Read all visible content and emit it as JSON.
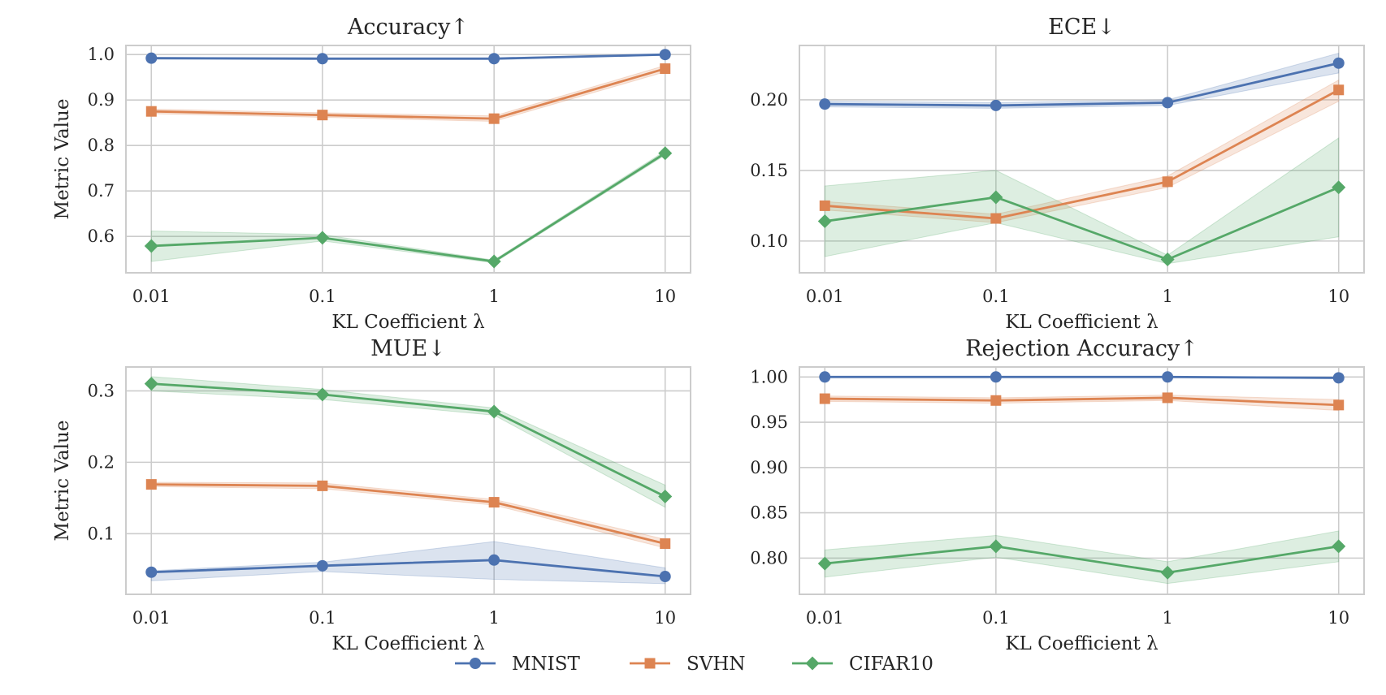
{
  "chart_data": [
    {
      "type": "line",
      "title": "Accuracy↑",
      "xlabel": "KL Coefficient λ",
      "ylabel": "Metric Value",
      "categories": [
        "0.01",
        "0.1",
        "1",
        "10"
      ],
      "ylim": [
        0.52,
        1.02
      ],
      "yticks": [
        0.6,
        0.7,
        0.8,
        0.9,
        1.0
      ],
      "ytick_labels": [
        "0.6",
        "0.7",
        "0.8",
        "0.9",
        "1.0"
      ],
      "grid": true,
      "series": [
        {
          "name": "MNIST",
          "values": [
            0.992,
            0.991,
            0.991,
            1.0
          ],
          "lower": [
            0.99,
            0.989,
            0.989,
            0.998
          ],
          "upper": [
            0.994,
            0.993,
            0.993,
            1.0
          ]
        },
        {
          "name": "SVHN",
          "values": [
            0.875,
            0.867,
            0.859,
            0.969
          ],
          "lower": [
            0.87,
            0.862,
            0.853,
            0.962
          ],
          "upper": [
            0.88,
            0.872,
            0.865,
            0.976
          ]
        },
        {
          "name": "CIFAR10",
          "values": [
            0.579,
            0.597,
            0.545,
            0.783
          ],
          "lower": [
            0.545,
            0.59,
            0.542,
            0.779
          ],
          "upper": [
            0.612,
            0.604,
            0.548,
            0.788
          ]
        }
      ]
    },
    {
      "type": "line",
      "title": "ECE↓",
      "xlabel": "KL Coefficient λ",
      "ylabel": "",
      "categories": [
        "0.01",
        "0.1",
        "1",
        "10"
      ],
      "ylim": [
        0.0775,
        0.2385
      ],
      "yticks": [
        0.1,
        0.15,
        0.2
      ],
      "ytick_labels": [
        "0.10",
        "0.15",
        "0.20"
      ],
      "grid": true,
      "series": [
        {
          "name": "MNIST",
          "values": [
            0.197,
            0.196,
            0.198,
            0.226
          ],
          "lower": [
            0.195,
            0.194,
            0.196,
            0.219
          ],
          "upper": [
            0.199,
            0.198,
            0.2,
            0.233
          ]
        },
        {
          "name": "SVHN",
          "values": [
            0.125,
            0.116,
            0.142,
            0.207
          ],
          "lower": [
            0.122,
            0.113,
            0.138,
            0.199
          ],
          "upper": [
            0.128,
            0.119,
            0.146,
            0.214
          ]
        },
        {
          "name": "CIFAR10",
          "values": [
            0.114,
            0.131,
            0.087,
            0.138
          ],
          "lower": [
            0.089,
            0.113,
            0.084,
            0.103
          ],
          "upper": [
            0.139,
            0.15,
            0.09,
            0.173
          ]
        }
      ]
    },
    {
      "type": "line",
      "title": "MUE↓",
      "xlabel": "KL Coefficient λ",
      "ylabel": "Metric Value",
      "categories": [
        "0.01",
        "0.1",
        "1",
        "10"
      ],
      "ylim": [
        0.015,
        0.3335
      ],
      "yticks": [
        0.1,
        0.2,
        0.3
      ],
      "ytick_labels": [
        "0.1",
        "0.2",
        "0.3"
      ],
      "grid": true,
      "series": [
        {
          "name": "MNIST",
          "values": [
            0.046,
            0.055,
            0.063,
            0.04
          ],
          "lower": [
            0.034,
            0.047,
            0.036,
            0.03
          ],
          "upper": [
            0.048,
            0.06,
            0.089,
            0.052
          ]
        },
        {
          "name": "SVHN",
          "values": [
            0.169,
            0.167,
            0.144,
            0.086
          ],
          "lower": [
            0.166,
            0.163,
            0.14,
            0.08
          ],
          "upper": [
            0.172,
            0.171,
            0.148,
            0.092
          ]
        },
        {
          "name": "CIFAR10",
          "values": [
            0.31,
            0.295,
            0.271,
            0.152
          ],
          "lower": [
            0.3,
            0.288,
            0.266,
            0.137
          ],
          "upper": [
            0.32,
            0.302,
            0.276,
            0.168
          ]
        }
      ]
    },
    {
      "type": "line",
      "title": "Rejection Accuracy↑",
      "xlabel": "KL Coefficient λ",
      "ylabel": "",
      "categories": [
        "0.01",
        "0.1",
        "1",
        "10"
      ],
      "ylim": [
        0.76,
        1.011
      ],
      "yticks": [
        0.8,
        0.85,
        0.9,
        0.95,
        1.0
      ],
      "ytick_labels": [
        "0.80",
        "0.85",
        "0.90",
        "0.95",
        "1.00"
      ],
      "grid": true,
      "series": [
        {
          "name": "MNIST",
          "values": [
            1.0,
            1.0,
            1.0,
            0.999
          ],
          "lower": [
            0.999,
            0.999,
            0.999,
            0.998
          ],
          "upper": [
            1.0,
            1.0,
            1.0,
            1.0
          ]
        },
        {
          "name": "SVHN",
          "values": [
            0.976,
            0.974,
            0.977,
            0.969
          ],
          "lower": [
            0.973,
            0.971,
            0.974,
            0.963
          ],
          "upper": [
            0.979,
            0.977,
            0.98,
            0.975
          ]
        },
        {
          "name": "CIFAR10",
          "values": [
            0.794,
            0.813,
            0.784,
            0.813
          ],
          "lower": [
            0.779,
            0.801,
            0.772,
            0.796
          ],
          "upper": [
            0.809,
            0.825,
            0.796,
            0.83
          ]
        }
      ]
    }
  ],
  "legend": {
    "position": "bottom-center",
    "items": [
      {
        "name": "MNIST",
        "color": "#4c72b0",
        "marker": "circle"
      },
      {
        "name": "SVHN",
        "color": "#dd8452",
        "marker": "square"
      },
      {
        "name": "CIFAR10",
        "color": "#55a868",
        "marker": "diamond"
      }
    ]
  },
  "colors": {
    "MNIST": "#4c72b0",
    "SVHN": "#dd8452",
    "CIFAR10": "#55a868",
    "grid": "#cccccc",
    "spine": "#cccccc"
  },
  "markers": {
    "MNIST": "circle",
    "SVHN": "square",
    "CIFAR10": "diamond"
  }
}
